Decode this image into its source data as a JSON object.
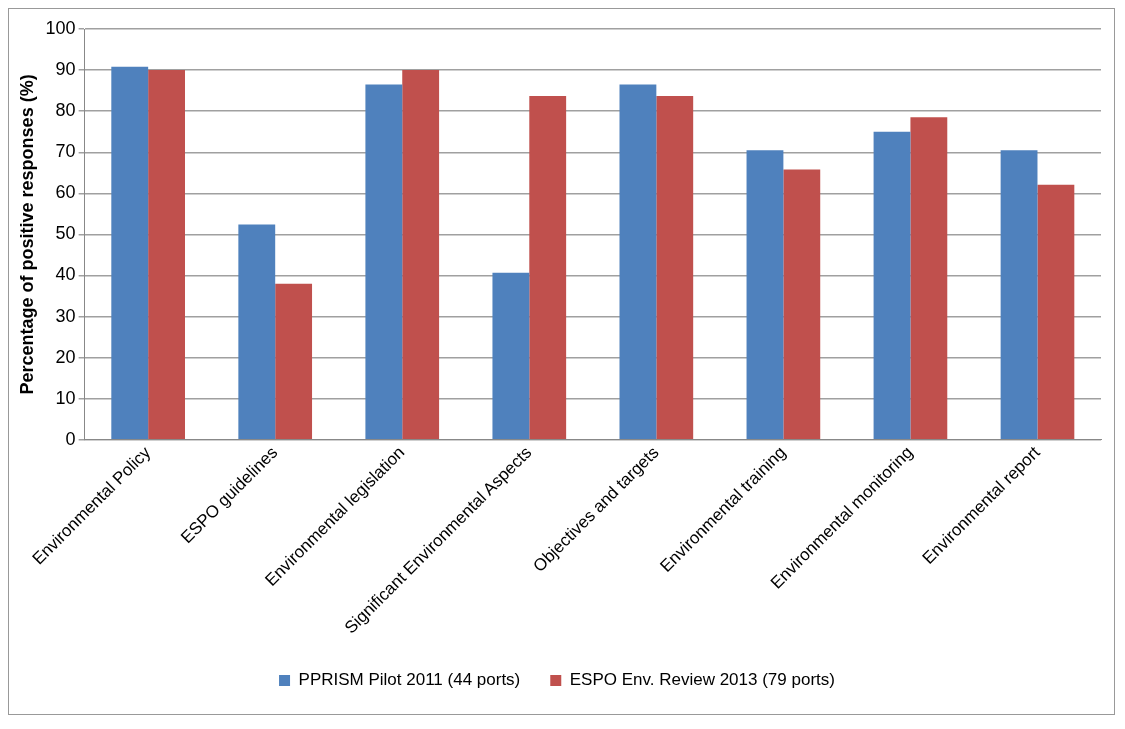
{
  "chart_data": {
    "type": "bar",
    "ylabel": "Percentage of positive responses (%)",
    "categories": [
      "Environmental Policy",
      "ESPO guidelines",
      "Environmental legislation",
      "Significant Environmental Aspects",
      "Objectives and targets",
      "Environmental training",
      "Environmental monitoring",
      "Environmental report"
    ],
    "series": [
      {
        "name": "PPRISM Pilot 2011 (44 ports)",
        "color": "#4f81bd",
        "values": [
          90.8,
          52.4,
          86.5,
          40.7,
          86.5,
          70.5,
          75,
          70.5
        ]
      },
      {
        "name": "ESPO Env. Review 2013 (79 ports)",
        "color": "#c0504d",
        "values": [
          90,
          38,
          90,
          83.7,
          83.7,
          65.8,
          78.5,
          62.1
        ]
      }
    ],
    "ylim": [
      0,
      100
    ],
    "yticks": [
      0,
      10,
      20,
      30,
      40,
      50,
      60,
      70,
      80,
      90,
      100
    ],
    "grid": "y",
    "legend": "bottom"
  }
}
